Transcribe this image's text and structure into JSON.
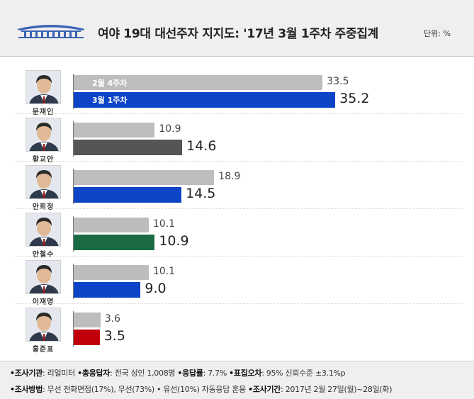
{
  "header": {
    "title": "여야 19대 대선주자 지지도: '17년 3월 1주차 주중집계",
    "unit": "단위: %"
  },
  "chart_data": {
    "type": "bar",
    "title": "여야 19대 대선주자 지지도: '17년 3월 1주차 주중집계",
    "unit": "%",
    "series_labels": [
      "2월 4주차",
      "3월 1주차"
    ],
    "candidates": [
      {
        "name": "문재인",
        "prev": 33.5,
        "curr": 35.2,
        "color": "#0c43c7"
      },
      {
        "name": "황교안",
        "prev": 10.9,
        "curr": 14.6,
        "color": "#555555"
      },
      {
        "name": "안희정",
        "prev": 18.9,
        "curr": 14.5,
        "color": "#0c43c7"
      },
      {
        "name": "안철수",
        "prev": 10.1,
        "curr": 10.9,
        "color": "#1a6b43"
      },
      {
        "name": "이재명",
        "prev": 10.1,
        "curr": 9.0,
        "color": "#0c43c7"
      },
      {
        "name": "홍준표",
        "prev": 3.6,
        "curr": 3.5,
        "color": "#c1000b"
      }
    ],
    "prev_color": "#bdbdbd",
    "xlim": [
      0,
      43
    ]
  },
  "footer": {
    "line1": [
      {
        "key": "•조사기관",
        "value": ": 리얼미터 "
      },
      {
        "key": "•총응답자",
        "value": ": 전국 성인 1,008명 "
      },
      {
        "key": "•응답률",
        "value": ": 7.7% "
      },
      {
        "key": "•표집오차",
        "value": ": 95% 신뢰수준 ±3.1%p"
      }
    ],
    "line2": [
      {
        "key": "•조사방법",
        "value": ": 무선 전화면접(17%), 무선(73%) • 유선(10%) 자동응답 혼용 "
      },
      {
        "key": "•조사기간",
        "value": ": 2017년 2월 27일(월)~28일(화)"
      }
    ]
  }
}
